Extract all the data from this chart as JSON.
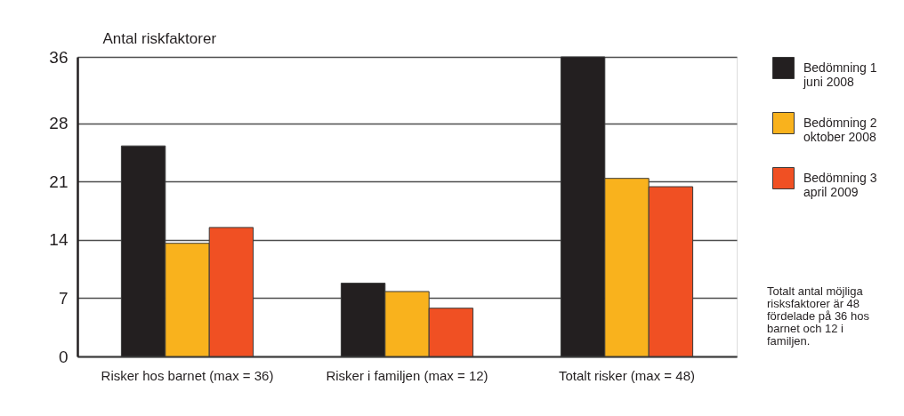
{
  "chart_data": {
    "type": "bar",
    "ylabel": "Antal riskfaktorer",
    "categories": [
      "Risker hos barnet (max = 36)",
      "Risker i familjen (max = 12)",
      "Totalt risker (max = 48)"
    ],
    "series": [
      {
        "name": "Bedömning 1 juni 2008",
        "color": "#231f20",
        "values": [
          25.3,
          8.8,
          36
        ]
      },
      {
        "name": "Bedömning 2 oktober 2008",
        "color": "#f9b21d",
        "values": [
          13.6,
          7.8,
          21.4
        ]
      },
      {
        "name": "Bedömning 3 april 2009",
        "color": "#f05023",
        "values": [
          15.5,
          5.8,
          20.4
        ]
      }
    ],
    "ylim": [
      0,
      36
    ],
    "yticks": [
      0,
      7,
      14,
      21,
      28,
      36
    ],
    "grid": "y",
    "legend": "top right",
    "annotations": [
      "Totalt antal möjliga risksfaktorer är 48 fördelade på 36 hos barnet och 12 i familjen."
    ]
  }
}
